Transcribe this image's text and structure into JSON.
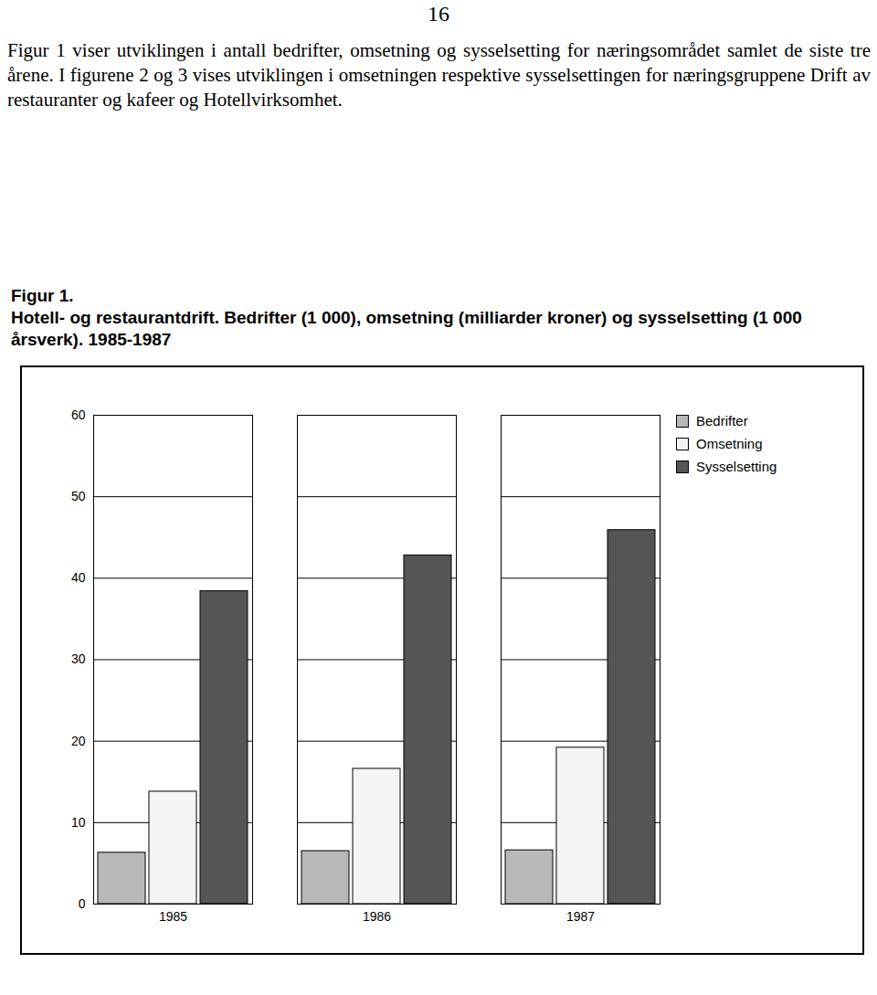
{
  "page_number": "16",
  "text": "Figur 1 viser utviklingen i antall bedrifter, omsetning og sysselsetting for næringsområdet samlet de siste tre årene. I figurene 2 og 3 vises utviklingen i omsetningen respektive sysselsettingen for næringsgruppene Drift av restauranter og kafeer og Hotellvirksomhet.",
  "chart_data": {
    "type": "bar",
    "title": "Figur 1.",
    "subtitle": "Hotell- og restaurantdrift. Bedrifter (1 000), omsetning (milliarder kroner) og sysselsetting (1 000 årsverk). 1985-1987",
    "categories": [
      "1985",
      "1986",
      "1987"
    ],
    "series": [
      {
        "name": "Bedrifter",
        "color": "#b8b8b8",
        "values": [
          6.3,
          6.5,
          6.6
        ]
      },
      {
        "name": "Omsetning",
        "color": "#f4f4f4",
        "values": [
          13.8,
          16.6,
          19.2
        ]
      },
      {
        "name": "Sysselsetting",
        "color": "#555555",
        "values": [
          38.4,
          42.8,
          45.9
        ]
      }
    ],
    "ylim": [
      0,
      60
    ],
    "yticks": [
      0,
      10,
      20,
      30,
      40,
      50,
      60
    ],
    "grid": true,
    "legend": "top-right"
  }
}
